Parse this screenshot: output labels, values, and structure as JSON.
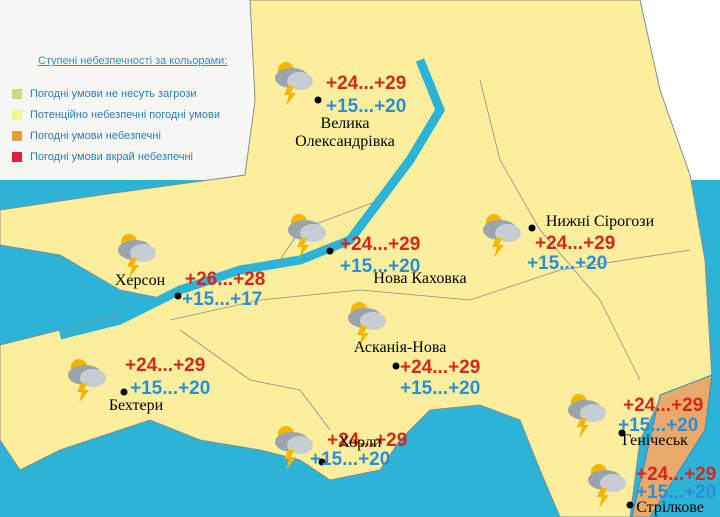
{
  "legend": {
    "title": "Ступені небезпечності за кольорами:",
    "items": [
      "Погодні умови не несуть загрози",
      "Потенційно небезпечні погодні умови",
      "Погодні умови небезпечні",
      "Погодні умови вкрай небезпечні"
    ]
  },
  "cities": [
    {
      "name": "Велика Олександрівка",
      "day": "+24...+29",
      "night": "+15...+20"
    },
    {
      "name": "Нова Каховка",
      "day": "+24...+29",
      "night": "+15...+20"
    },
    {
      "name": "Нижні Сірогози",
      "day": "+24...+29",
      "night": "+15...+20"
    },
    {
      "name": "Херсон",
      "day": "+26...+28",
      "night": "+15...+17"
    },
    {
      "name": "Асканія-Нова",
      "day": "+24...+29",
      "night": "+15...+20"
    },
    {
      "name": "Бехтери",
      "day": "+24...+29",
      "night": "+15...+20"
    },
    {
      "name": "Хорли",
      "day": "+24...+29",
      "night": "+15...+20"
    },
    {
      "name": "Генічеськ",
      "day": "+24...+29",
      "night": "+15...+20"
    },
    {
      "name": "Стрілкове",
      "day": "+24...+29",
      "night": "+15...+20"
    }
  ]
}
